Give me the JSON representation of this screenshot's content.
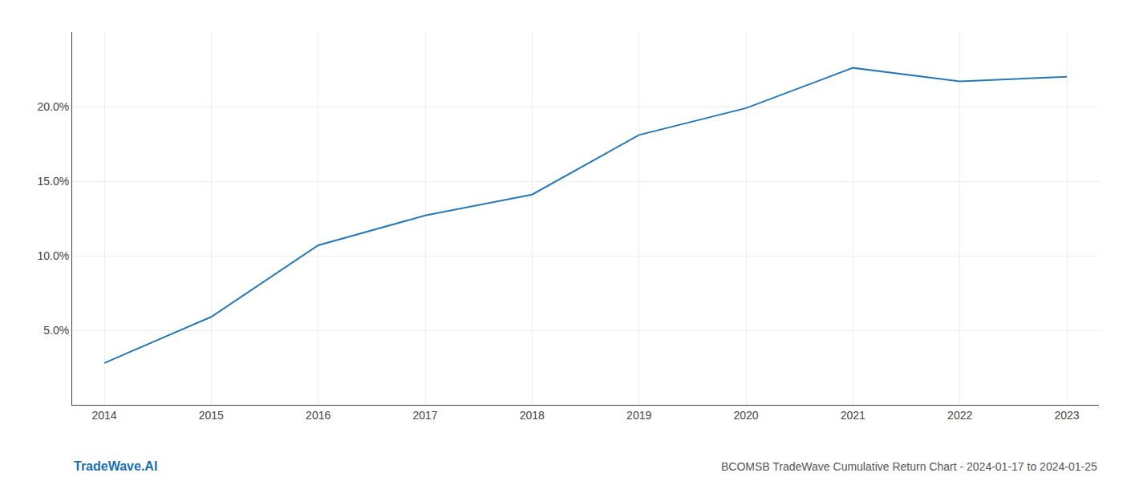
{
  "chart_data": {
    "type": "line",
    "title": "BCOMSB TradeWave Cumulative Return Chart - 2024-01-17 to 2024-01-25",
    "annotations": [
      "TradeWave.AI"
    ],
    "x": [
      2014,
      2015,
      2016,
      2017,
      2018,
      2019,
      2020,
      2021,
      2022,
      2023
    ],
    "values": [
      2.8,
      5.9,
      10.7,
      12.7,
      14.1,
      18.1,
      19.9,
      22.6,
      21.7,
      22.0
    ],
    "color": "#2878b5",
    "xlim": [
      2013.7,
      2023.3
    ],
    "xticks": [
      2014,
      2015,
      2016,
      2017,
      2018,
      2019,
      2020,
      2021,
      2022,
      2023
    ],
    "ylim": [
      0,
      25
    ],
    "yticks": [
      {
        "value": 5.0,
        "label": "5.0%"
      },
      {
        "value": 10.0,
        "label": "10.0%"
      },
      {
        "value": 15.0,
        "label": "15.0%"
      },
      {
        "value": 20.0,
        "label": "20.0%"
      }
    ],
    "grid": true
  }
}
